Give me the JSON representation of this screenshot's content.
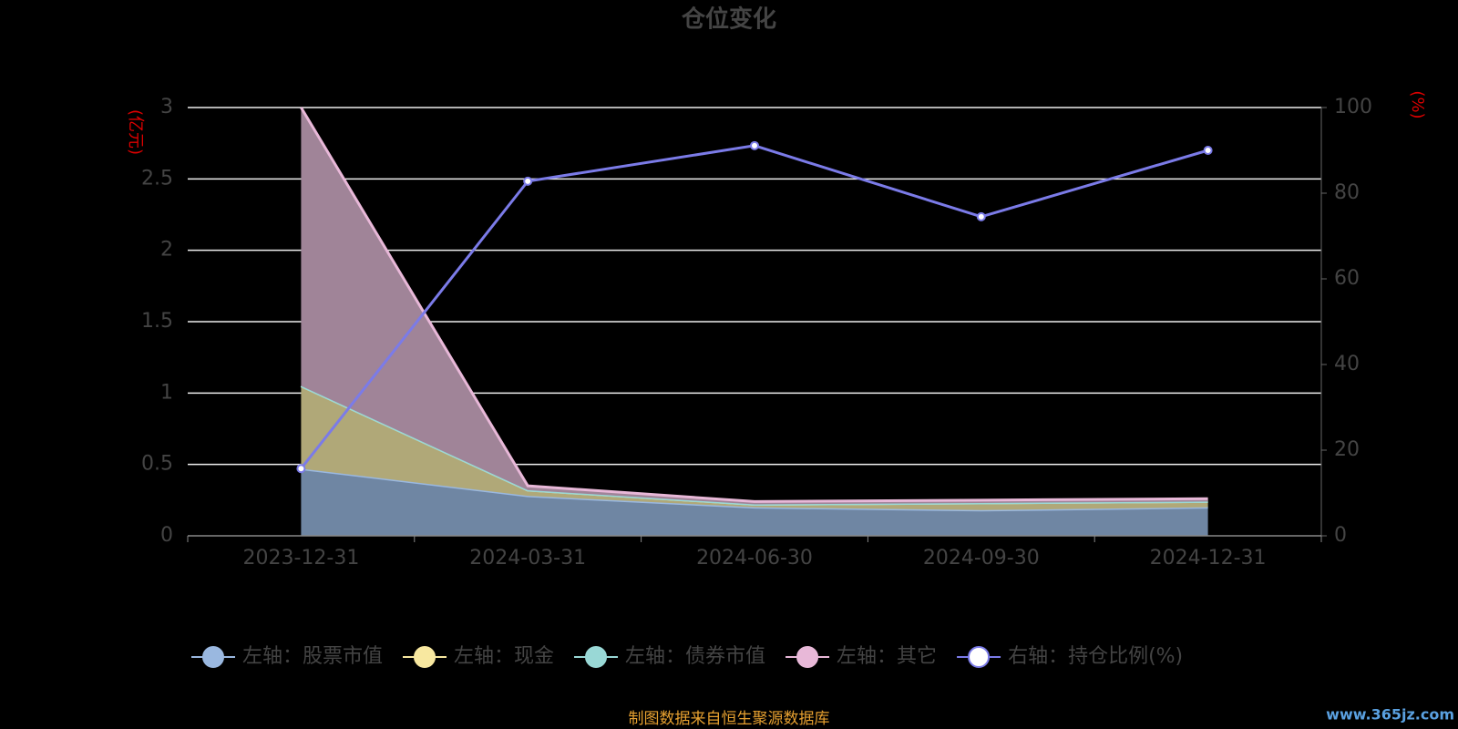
{
  "chart_data": {
    "type": "stacked_area_line",
    "title": "仓位变化",
    "y_label": "(亿元)",
    "y2_label": "(%)",
    "categories": [
      "2023-12-31",
      "2024-03-31",
      "2024-06-30",
      "2024-09-30",
      "2024-12-31"
    ],
    "series": [
      {
        "name": "左轴：股票市值",
        "color": "#9ab8e0",
        "fill": "#6f86a3",
        "values": [
          0.47,
          0.28,
          0.2,
          0.18,
          0.2
        ]
      },
      {
        "name": "左轴：现金",
        "color": "#f8e8a0",
        "fill": "#b0a878",
        "values": [
          0.58,
          0.04,
          0.02,
          0.05,
          0.04
        ]
      },
      {
        "name": "左轴：债券市值",
        "color": "#99d8d6",
        "fill": "#7fb0ae",
        "values": [
          0,
          0,
          0,
          0,
          0
        ]
      },
      {
        "name": "左轴：其它",
        "color": "#e8b8d8",
        "fill": "#a08498",
        "values": [
          1.95,
          0.03,
          0.02,
          0.02,
          0.02
        ]
      },
      {
        "name": "右轴：持仓比例(%)",
        "color": "#7b7be8",
        "axis": "y2",
        "values": [
          15.7,
          82.8,
          91.1,
          74.5,
          90.0
        ]
      }
    ],
    "ylim": [
      0,
      3
    ],
    "yticks": [
      0,
      0.5,
      1,
      1.5,
      2,
      2.5,
      3
    ],
    "y2lim": [
      0,
      100
    ],
    "y2ticks": [
      0,
      20,
      40,
      60,
      80,
      100
    ],
    "grid": true,
    "source": "制图数据来自恒生聚源数据库",
    "watermark": "www.365jz.com"
  }
}
